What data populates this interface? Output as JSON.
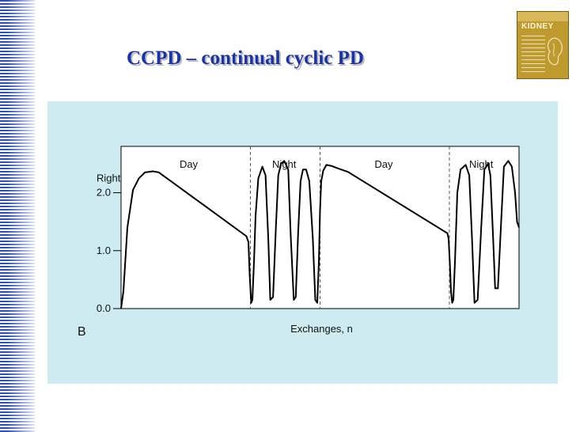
{
  "slide": {
    "title": "CCPD – continual cyclic PD"
  },
  "book_cover": {
    "title": "KIDNEY"
  },
  "chart_data": {
    "type": "line",
    "panel_label": "B",
    "xlabel": "Exchanges, n",
    "ylabel": "Right",
    "ylim": [
      0,
      2.8
    ],
    "y_ticks": [
      {
        "value": 0.0,
        "label": "0.0"
      },
      {
        "value": 1.0,
        "label": "1.0"
      },
      {
        "value": 2.0,
        "label": "2.0"
      }
    ],
    "x_range": [
      0,
      100
    ],
    "phase_dividers": [
      32.5,
      50,
      82.5
    ],
    "phases": [
      {
        "label": "Day",
        "x": 17
      },
      {
        "label": "Night",
        "x": 41
      },
      {
        "label": "Day",
        "x": 66
      },
      {
        "label": "Night",
        "x": 90.5
      }
    ],
    "series": [
      {
        "color": "#000000",
        "x": [
          0,
          0.6,
          1.6,
          3,
          4.5,
          6,
          8,
          9.5,
          31.5,
          32,
          32.3,
          32.7,
          33,
          33.4,
          33.8,
          34.5,
          35.5,
          36.3,
          37,
          37.5,
          38.2,
          38.9,
          39.5,
          40.2,
          41,
          42,
          42.6,
          43.4,
          43.9,
          44.5,
          45.1,
          45.7,
          46.5,
          47.3,
          48.2,
          48.8,
          49.3,
          49.7,
          50,
          50.3,
          50.8,
          51.6,
          53,
          54.5,
          57,
          82,
          82.3,
          82.6,
          82.9,
          83.2,
          83.5,
          83.9,
          84.5,
          85.3,
          86.6,
          87.5,
          88.2,
          88.8,
          89.6,
          90.5,
          91.3,
          92.2,
          92.8,
          93.5,
          94,
          94.7,
          95.5,
          96.2,
          97.3,
          98.2,
          99,
          99.5,
          100
        ],
        "y": [
          0,
          0.3,
          1.4,
          2.05,
          2.25,
          2.35,
          2.37,
          2.35,
          1.25,
          1.15,
          0.6,
          0.1,
          0.15,
          0.8,
          1.6,
          2.25,
          2.45,
          2.3,
          1.2,
          0.15,
          0.2,
          1.4,
          2.3,
          2.5,
          2.55,
          2.4,
          1.3,
          0.15,
          0.2,
          1.3,
          2.2,
          2.4,
          2.4,
          2.2,
          1.2,
          0.15,
          0.1,
          0.8,
          1.7,
          2.2,
          2.38,
          2.48,
          2.46,
          2.42,
          2.36,
          1.3,
          1.2,
          0.8,
          0.3,
          0.1,
          0.15,
          0.8,
          2.0,
          2.4,
          2.48,
          2.3,
          1.2,
          0.1,
          0.15,
          1.4,
          2.4,
          2.5,
          2.3,
          1.2,
          0.35,
          0.35,
          1.5,
          2.45,
          2.55,
          2.45,
          2.0,
          1.5,
          1.4
        ]
      }
    ]
  }
}
